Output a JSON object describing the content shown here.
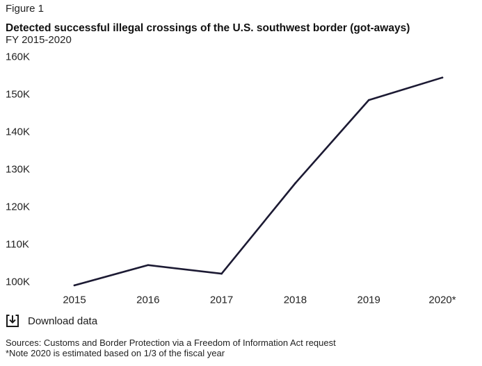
{
  "figure_label": "Figure 1",
  "chart_data": {
    "type": "line",
    "title": "Detected successful illegal crossings of the U.S. southwest border (got-aways)",
    "subtitle": "FY 2015-2020",
    "categories": [
      "2015",
      "2016",
      "2017",
      "2018",
      "2019",
      "2020*"
    ],
    "series": [
      {
        "values": [
          99100,
          104500,
          102200,
          126300,
          148500,
          154500
        ]
      }
    ],
    "ylim": [
      100000,
      160000
    ],
    "yticks": [
      100000,
      110000,
      120000,
      130000,
      140000,
      150000,
      160000
    ],
    "ytick_labels": [
      "100K",
      "110K",
      "120K",
      "130K",
      "140K",
      "150K",
      "160K"
    ],
    "xlabel": "",
    "ylabel": "",
    "grid": false,
    "line_color": "#1c1a33"
  },
  "download": {
    "label": "Download data",
    "icon": "download-icon"
  },
  "notes": {
    "sources": "Sources: Customs and Border Protection via a Freedom of Information Act request",
    "note": "*Note 2020 is estimated based on 1/3 of the fiscal year"
  }
}
